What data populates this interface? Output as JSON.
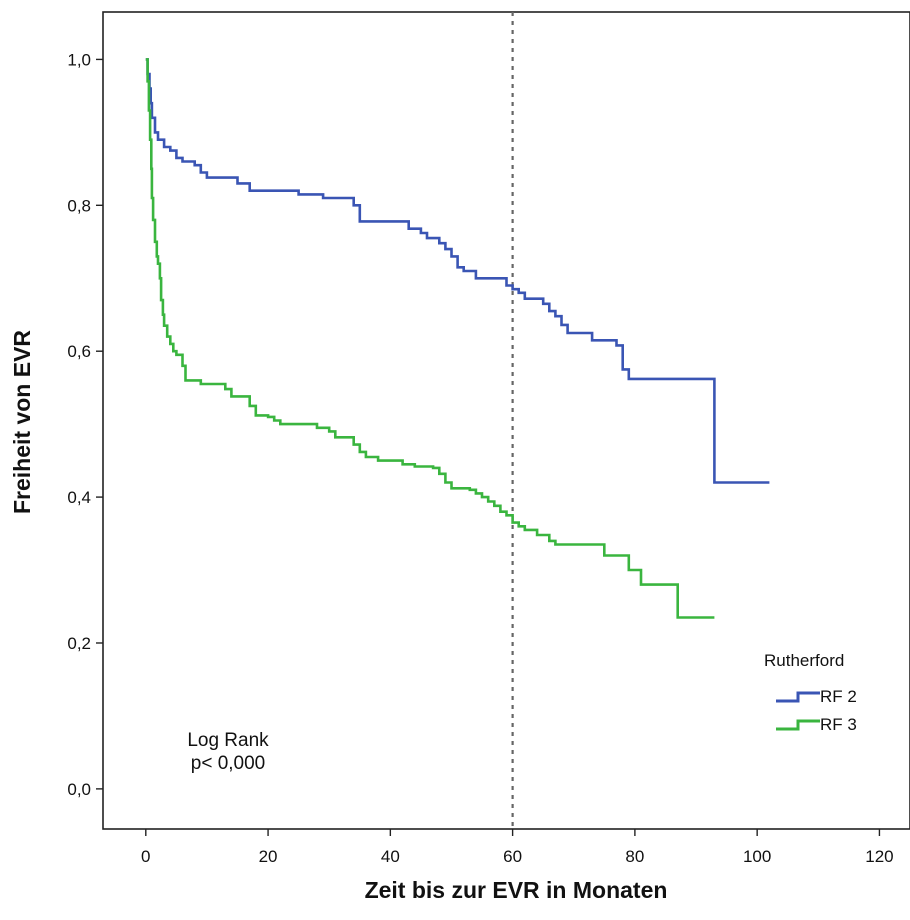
{
  "chart_data": {
    "type": "line",
    "xlabel": "Zeit bis zur EVR in Monaten",
    "ylabel": "Freiheit von EVR",
    "xlim": [
      -7,
      125
    ],
    "ylim": [
      -0.055,
      1.065
    ],
    "x_ticks": [
      0,
      20,
      40,
      60,
      80,
      100,
      120
    ],
    "x_tick_labels": [
      "0",
      "20",
      "40",
      "60",
      "80",
      "100",
      "120"
    ],
    "y_ticks": [
      0.0,
      0.2,
      0.4,
      0.6,
      0.8,
      1.0
    ],
    "y_tick_labels": [
      "0,0",
      "0,2",
      "0,4",
      "0,6",
      "0,8",
      "1,0"
    ],
    "grid": false,
    "step": true,
    "reference_line": {
      "x": 60,
      "style": "dotted"
    },
    "legend": {
      "title": "Rutherford",
      "position": "bottom-right"
    },
    "annotation": [
      "Log Rank",
      "p< 0,000"
    ],
    "series": [
      {
        "name": "RF 2",
        "color": "#3a55b4",
        "points": [
          [
            0,
            1.0
          ],
          [
            0.3,
            0.98
          ],
          [
            0.6,
            0.96
          ],
          [
            0.8,
            0.94
          ],
          [
            1.0,
            0.92
          ],
          [
            1.5,
            0.9
          ],
          [
            2,
            0.89
          ],
          [
            3,
            0.88
          ],
          [
            4,
            0.875
          ],
          [
            5,
            0.865
          ],
          [
            6,
            0.86
          ],
          [
            8,
            0.855
          ],
          [
            9,
            0.845
          ],
          [
            10,
            0.838
          ],
          [
            15,
            0.83
          ],
          [
            17,
            0.82
          ],
          [
            20,
            0.82
          ],
          [
            25,
            0.815
          ],
          [
            29,
            0.81
          ],
          [
            34,
            0.8
          ],
          [
            35,
            0.778
          ],
          [
            43,
            0.768
          ],
          [
            45,
            0.762
          ],
          [
            46,
            0.755
          ],
          [
            48,
            0.748
          ],
          [
            49,
            0.74
          ],
          [
            50,
            0.73
          ],
          [
            51,
            0.715
          ],
          [
            52,
            0.71
          ],
          [
            54,
            0.7
          ],
          [
            59,
            0.69
          ],
          [
            60,
            0.685
          ],
          [
            61,
            0.68
          ],
          [
            62,
            0.672
          ],
          [
            65,
            0.665
          ],
          [
            66,
            0.655
          ],
          [
            67,
            0.648
          ],
          [
            68,
            0.636
          ],
          [
            69,
            0.625
          ],
          [
            72,
            0.625
          ],
          [
            73,
            0.615
          ],
          [
            77,
            0.608
          ],
          [
            78,
            0.575
          ],
          [
            79,
            0.562
          ],
          [
            92,
            0.562
          ],
          [
            93,
            0.42
          ],
          [
            102,
            0.42
          ]
        ]
      },
      {
        "name": "RF 3",
        "color": "#3ab53f",
        "points": [
          [
            0,
            1.0
          ],
          [
            0.3,
            0.97
          ],
          [
            0.5,
            0.93
          ],
          [
            0.7,
            0.89
          ],
          [
            0.9,
            0.85
          ],
          [
            1.0,
            0.81
          ],
          [
            1.2,
            0.78
          ],
          [
            1.5,
            0.75
          ],
          [
            1.8,
            0.73
          ],
          [
            2,
            0.72
          ],
          [
            2.3,
            0.7
          ],
          [
            2.5,
            0.67
          ],
          [
            2.8,
            0.65
          ],
          [
            3,
            0.635
          ],
          [
            3.5,
            0.62
          ],
          [
            4,
            0.61
          ],
          [
            4.5,
            0.6
          ],
          [
            5,
            0.595
          ],
          [
            6,
            0.58
          ],
          [
            6.5,
            0.56
          ],
          [
            9,
            0.555
          ],
          [
            13,
            0.548
          ],
          [
            14,
            0.538
          ],
          [
            17,
            0.525
          ],
          [
            18,
            0.512
          ],
          [
            20,
            0.51
          ],
          [
            21,
            0.505
          ],
          [
            22,
            0.5
          ],
          [
            28,
            0.495
          ],
          [
            30,
            0.49
          ],
          [
            31,
            0.482
          ],
          [
            34,
            0.472
          ],
          [
            35,
            0.462
          ],
          [
            36,
            0.455
          ],
          [
            38,
            0.45
          ],
          [
            42,
            0.445
          ],
          [
            44,
            0.442
          ],
          [
            47,
            0.44
          ],
          [
            48,
            0.432
          ],
          [
            49,
            0.42
          ],
          [
            50,
            0.412
          ],
          [
            53,
            0.41
          ],
          [
            54,
            0.405
          ],
          [
            55,
            0.4
          ],
          [
            56,
            0.394
          ],
          [
            57,
            0.388
          ],
          [
            58,
            0.38
          ],
          [
            59,
            0.375
          ],
          [
            60,
            0.365
          ],
          [
            61,
            0.36
          ],
          [
            62,
            0.355
          ],
          [
            64,
            0.348
          ],
          [
            66,
            0.34
          ],
          [
            67,
            0.335
          ],
          [
            74,
            0.335
          ],
          [
            75,
            0.32
          ],
          [
            78,
            0.32
          ],
          [
            79,
            0.3
          ],
          [
            81,
            0.28
          ],
          [
            86,
            0.28
          ],
          [
            87,
            0.235
          ],
          [
            93,
            0.235
          ]
        ]
      }
    ]
  }
}
